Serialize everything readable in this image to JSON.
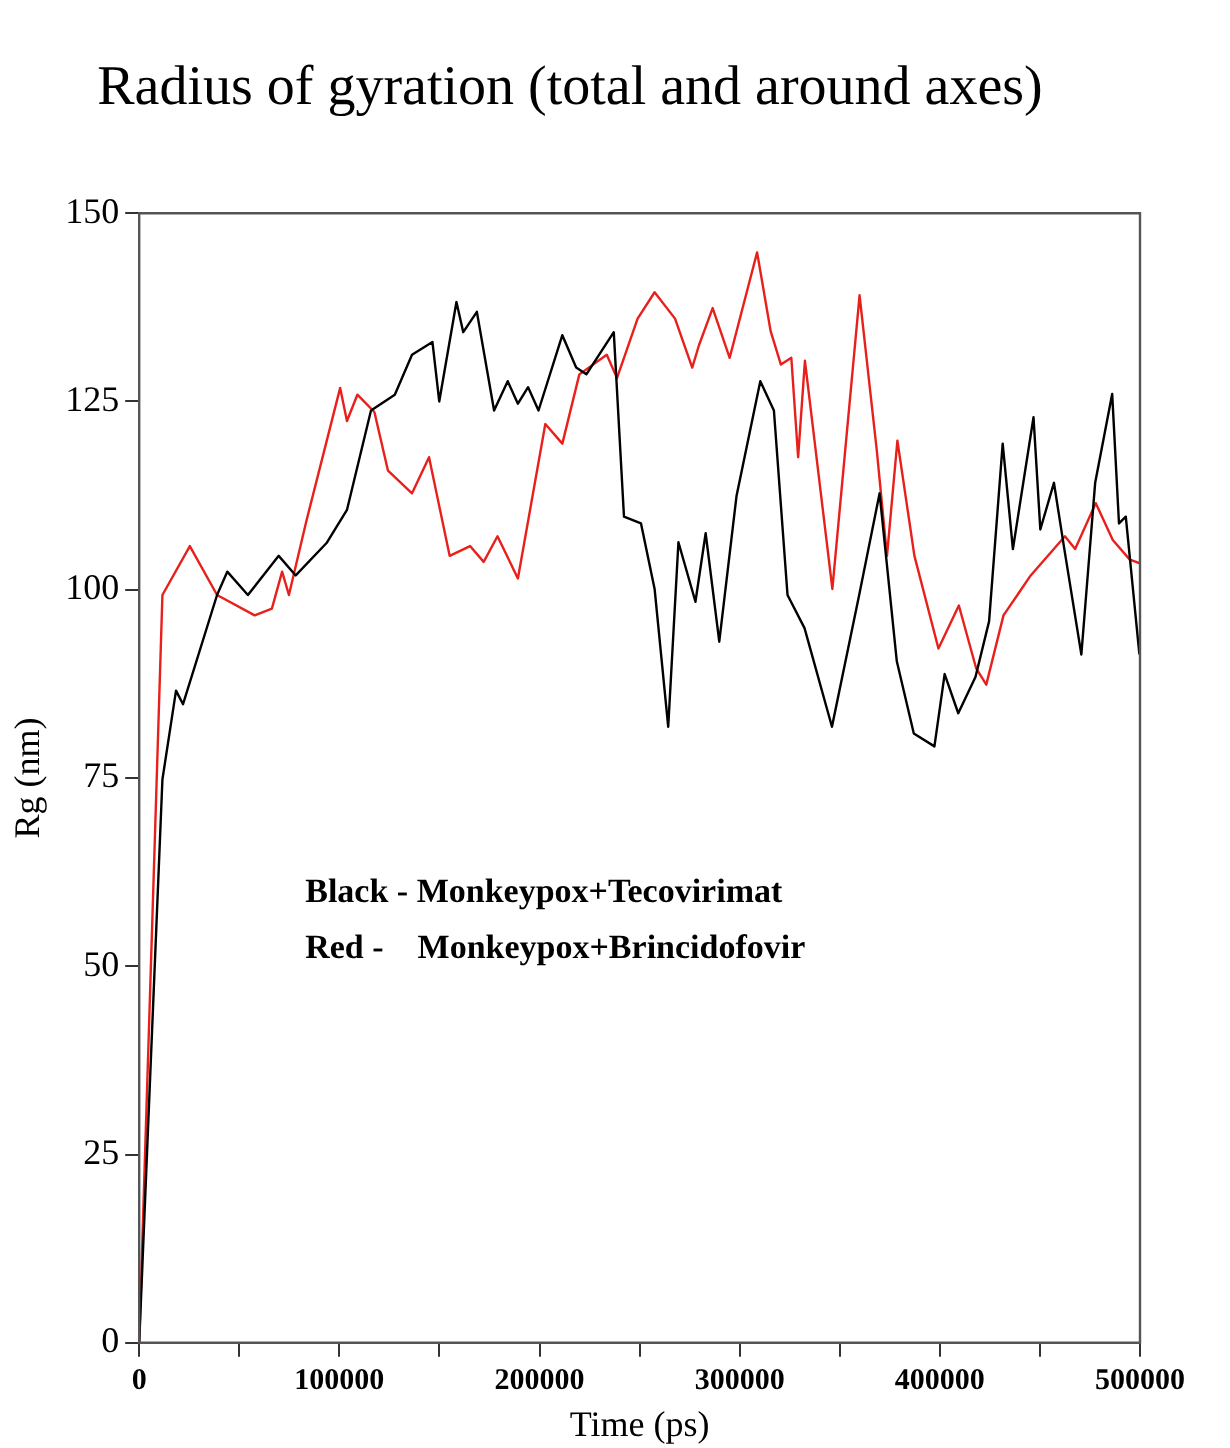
{
  "chart_data": {
    "type": "line",
    "title": "Radius of gyration (total and around axes)",
    "xlabel": "Time (ps)",
    "ylabel": "Rg (nm)",
    "xlim": [
      0,
      500000
    ],
    "xticks": [
      0,
      {
        "value": 50000,
        "label": null
      },
      100000,
      {
        "value": 150000,
        "label": null
      },
      200000,
      {
        "value": 250000,
        "label": null
      },
      300000,
      {
        "value": 350000,
        "label": null
      },
      400000,
      {
        "value": 450000,
        "label": null
      },
      500000
    ],
    "ylim": [
      0,
      150
    ],
    "yticks": [
      0,
      25,
      50,
      75,
      100,
      125,
      150
    ],
    "grid": false,
    "legend": false,
    "marker": "none",
    "line_style": "solid",
    "annotations": [
      "Black - Monkeypox+Tecovirimat",
      "Red -    Monkeypox+Brincidofovir"
    ],
    "series": [
      {
        "color": "#000000",
        "x": [
          0,
          11600,
          18400,
          21900,
          38900,
          44000,
          54300,
          69700,
          78200,
          93600,
          103800,
          115800,
          127700,
          136300,
          146500,
          149900,
          158500,
          161900,
          168700,
          177300,
          184100,
          189200,
          194300,
          199500,
          211400,
          218300,
          223400,
          237100,
          242200,
          250700,
          257500,
          264300,
          269400,
          277900,
          283000,
          289800,
          298400,
          310300,
          317100,
          323900,
          332400,
          346100,
          359700,
          369900,
          378500,
          387000,
          397300,
          402400,
          409200,
          417800,
          424600,
          431400,
          436500,
          446800,
          450200,
          457000,
          462200,
          470700,
          477600,
          486100,
          489500,
          492900,
          499700
        ],
        "values": [
          0,
          74.8,
          86.6,
          84.8,
          99.3,
          102.4,
          99.3,
          104.5,
          101.9,
          106.2,
          110.6,
          123.8,
          125.9,
          131.2,
          132.9,
          125,
          138.2,
          134.2,
          136.9,
          123.8,
          127.7,
          124.7,
          126.9,
          123.8,
          133.8,
          129.5,
          128.6,
          134.2,
          109.7,
          108.8,
          100.1,
          81.8,
          106.3,
          98.4,
          107.5,
          93.1,
          112.4,
          127.7,
          123.8,
          99.3,
          94.9,
          81.8,
          99.3,
          112.8,
          90.5,
          80.9,
          79.2,
          88.8,
          83.6,
          88.4,
          95.8,
          119.4,
          105.4,
          122.9,
          108,
          114.2,
          105.4,
          91.4,
          114.2,
          126,
          108.8,
          109.7,
          91.4
        ]
      },
      {
        "color": "#e8201c",
        "x": [
          0,
          11600,
          25300,
          38900,
          57700,
          66300,
          71400,
          74800,
          83400,
          100400,
          103800,
          109000,
          117500,
          124300,
          136300,
          144800,
          155100,
          165300,
          172100,
          179000,
          189200,
          202900,
          211400,
          219900,
          233600,
          238700,
          249000,
          257500,
          267700,
          276300,
          279700,
          286500,
          295000,
          308700,
          315500,
          320600,
          325800,
          329200,
          332600,
          346300,
          359900,
          368500,
          373600,
          378800,
          387300,
          399300,
          409500,
          418100,
          423200,
          431800,
          445400,
          462500,
          467600,
          477900,
          486400,
          494900,
          500000
        ],
        "values": [
          0,
          99.3,
          105.8,
          99.3,
          96.6,
          97.5,
          102.4,
          99.3,
          109,
          126.8,
          122.4,
          125.9,
          123.6,
          115.8,
          112.8,
          117.6,
          104.5,
          105.8,
          103.7,
          107.1,
          101.5,
          122,
          119.4,
          128.6,
          131.2,
          128.1,
          136,
          139.5,
          136,
          129.5,
          132.5,
          137.4,
          130.8,
          144.8,
          134.3,
          129.9,
          130.8,
          117.6,
          130.4,
          100.1,
          139.1,
          118.5,
          104.5,
          119.8,
          104.5,
          92.2,
          97.9,
          89.6,
          87.4,
          96.6,
          101.9,
          107.1,
          105.4,
          111.5,
          106.6,
          104,
          103.5
        ]
      }
    ]
  }
}
